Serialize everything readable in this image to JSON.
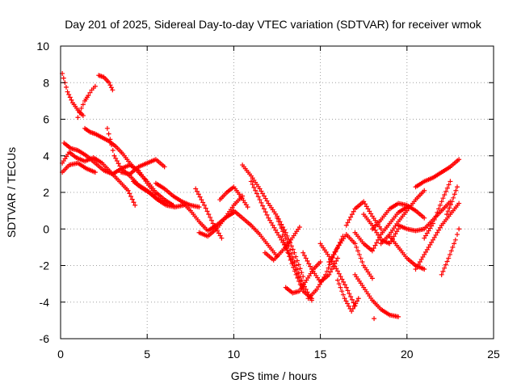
{
  "chart_data": {
    "type": "scatter",
    "title": "Day 201 of 2025, Sidereal Day-to-day VTEC variation (SDTVAR) for receiver wmok",
    "xlabel": "GPS time / hours",
    "ylabel": "SDTVAR / TECUs",
    "xlim": [
      0,
      25
    ],
    "ylim": [
      -6,
      10
    ],
    "xticks": [
      0,
      5,
      10,
      15,
      20,
      25
    ],
    "yticks": [
      -6,
      -4,
      -2,
      0,
      2,
      4,
      6,
      8,
      10
    ],
    "grid": true,
    "marker": "+",
    "color": "#ff0000",
    "series": [
      {
        "name": "s1",
        "x": [
          0.1,
          0.4,
          0.7,
          1.0,
          1.3
        ],
        "y": [
          8.5,
          7.5,
          6.9,
          6.5,
          6.2
        ]
      },
      {
        "name": "s2",
        "x": [
          0.1,
          0.5,
          0.9,
          1.4,
          1.9,
          2.4,
          2.9,
          3.4,
          3.9,
          4.3
        ],
        "y": [
          3.6,
          4.2,
          3.9,
          3.7,
          3.9,
          3.6,
          3.1,
          2.6,
          2.1,
          1.3
        ]
      },
      {
        "name": "s3",
        "x": [
          0.2,
          0.6,
          1.0,
          1.5,
          2.0,
          2.5,
          3.0,
          3.5,
          4.0,
          4.5,
          5.0,
          5.5
        ],
        "y": [
          4.7,
          4.4,
          4.3,
          4.0,
          3.6,
          3.2,
          3.0,
          3.3,
          3.5,
          3.2,
          2.5,
          1.9
        ]
      },
      {
        "name": "s4",
        "x": [
          0.1,
          0.5,
          1.0,
          1.5,
          2.0
        ],
        "y": [
          3.1,
          3.5,
          3.6,
          3.3,
          3.1
        ]
      },
      {
        "name": "s5",
        "x": [
          1.4,
          1.7,
          2.0,
          2.4,
          2.8,
          3.2,
          3.6,
          4.0,
          4.5,
          5.0,
          5.5,
          6.0,
          6.5
        ],
        "y": [
          5.5,
          5.3,
          5.2,
          5.0,
          4.8,
          4.5,
          4.1,
          3.6,
          3.1,
          2.6,
          2.0,
          1.6,
          1.3
        ]
      },
      {
        "name": "s6",
        "x": [
          1.0,
          1.2,
          1.4,
          1.6,
          1.8,
          2.0
        ],
        "y": [
          6.1,
          6.6,
          7.0,
          7.3,
          7.6,
          7.8
        ]
      },
      {
        "name": "s7",
        "x": [
          2.2,
          2.5,
          2.8,
          3.0
        ],
        "y": [
          8.4,
          8.3,
          8.0,
          7.6
        ]
      },
      {
        "name": "s8",
        "x": [
          2.7,
          3.1,
          3.5,
          4.0,
          4.5,
          5.0,
          5.5,
          6.0
        ],
        "y": [
          5.5,
          4.0,
          3.3,
          2.9,
          2.4,
          2.1,
          1.7,
          1.4
        ]
      },
      {
        "name": "s9",
        "x": [
          3.5,
          4.0,
          4.5,
          5.0,
          5.5,
          6.0
        ],
        "y": [
          3.1,
          3.0,
          3.4,
          3.6,
          3.8,
          3.4
        ]
      },
      {
        "name": "s10",
        "x": [
          4.2,
          4.6,
          5.1,
          5.6,
          6.1,
          6.6,
          7.1
        ],
        "y": [
          2.6,
          2.3,
          2.0,
          1.6,
          1.3,
          1.2,
          1.3
        ]
      },
      {
        "name": "s11",
        "x": [
          5.5,
          6.0,
          6.5,
          7.0,
          7.5,
          8.0
        ],
        "y": [
          2.5,
          2.2,
          1.8,
          1.5,
          1.3,
          1.2
        ]
      },
      {
        "name": "s12",
        "x": [
          7.0,
          7.5,
          8.0,
          8.5,
          9.0,
          9.5,
          10.0
        ],
        "y": [
          1.5,
          1.0,
          0.4,
          -0.1,
          0.2,
          0.6,
          0.9
        ]
      },
      {
        "name": "s13",
        "x": [
          7.8,
          8.3,
          8.8,
          9.3
        ],
        "y": [
          2.2,
          1.3,
          0.3,
          -0.5
        ]
      },
      {
        "name": "s14",
        "x": [
          8.0,
          8.5,
          9.0,
          9.5,
          10.0,
          10.5
        ],
        "y": [
          -0.2,
          -0.4,
          0.0,
          0.6,
          1.3,
          1.8
        ]
      },
      {
        "name": "s15",
        "x": [
          9.2,
          9.6,
          10.0,
          10.4,
          10.8
        ],
        "y": [
          1.6,
          2.0,
          2.3,
          1.8,
          1.2
        ]
      },
      {
        "name": "s16",
        "x": [
          10.0,
          10.5,
          11.0,
          11.5,
          12.0,
          12.5
        ],
        "y": [
          1.0,
          0.6,
          0.2,
          -0.3,
          -0.9,
          -1.5
        ]
      },
      {
        "name": "s17",
        "x": [
          10.5,
          11.0,
          11.5,
          12.0,
          12.5,
          13.0,
          13.5,
          14.0
        ],
        "y": [
          3.5,
          2.9,
          2.2,
          1.4,
          0.7,
          -0.2,
          -1.3,
          -2.6
        ]
      },
      {
        "name": "s18",
        "x": [
          11.0,
          11.5,
          12.0,
          12.5,
          13.0,
          13.5,
          14.0
        ],
        "y": [
          2.6,
          1.6,
          0.6,
          -0.2,
          -1.0,
          -2.0,
          -3.3
        ]
      },
      {
        "name": "s19",
        "x": [
          11.8,
          12.3,
          12.8,
          13.3,
          13.8
        ],
        "y": [
          -1.3,
          -1.7,
          -1.2,
          -0.6,
          0.1
        ]
      },
      {
        "name": "s20",
        "x": [
          12.5,
          13.0,
          13.5,
          14.0,
          14.5
        ],
        "y": [
          0.6,
          -0.5,
          -1.8,
          -3.0,
          -3.9
        ]
      },
      {
        "name": "s21",
        "x": [
          12.8,
          13.2,
          13.6,
          14.0,
          14.5
        ],
        "y": [
          -0.4,
          -1.5,
          -2.5,
          -3.4,
          -3.8
        ]
      },
      {
        "name": "s22",
        "x": [
          13.0,
          13.4,
          13.8,
          14.2,
          14.6,
          15.0
        ],
        "y": [
          -3.2,
          -3.5,
          -3.4,
          -2.8,
          -2.2,
          -1.8
        ]
      },
      {
        "name": "s23",
        "x": [
          14.0,
          14.5,
          15.0,
          15.5,
          16.0
        ],
        "y": [
          -1.3,
          -2.2,
          -2.9,
          -2.5,
          -1.6
        ]
      },
      {
        "name": "s24",
        "x": [
          14.3,
          14.8,
          15.3,
          15.8,
          16.3
        ],
        "y": [
          -3.8,
          -3.3,
          -2.5,
          -1.4,
          -0.4
        ]
      },
      {
        "name": "s25",
        "x": [
          15.0,
          15.5,
          16.0,
          16.5,
          17.0
        ],
        "y": [
          -0.8,
          -1.5,
          -2.3,
          -3.2,
          -4.2
        ]
      },
      {
        "name": "s26",
        "x": [
          15.5,
          16.0,
          16.5,
          17.0,
          17.5,
          18.0
        ],
        "y": [
          -1.8,
          -1.0,
          -0.3,
          -0.8,
          -2.0,
          -2.7
        ]
      },
      {
        "name": "s27",
        "x": [
          16.0,
          16.4,
          16.8,
          17.2
        ],
        "y": [
          -2.8,
          -3.8,
          -4.5,
          -3.8
        ]
      },
      {
        "name": "s28",
        "x": [
          16.5,
          17.0,
          17.5,
          18.0,
          18.5
        ],
        "y": [
          0.2,
          1.1,
          1.5,
          0.7,
          0.0
        ]
      },
      {
        "name": "s29",
        "x": [
          17.0,
          17.5,
          18.0,
          18.5,
          19.0,
          19.5
        ],
        "y": [
          -2.5,
          -3.2,
          -3.9,
          -4.4,
          -4.7,
          -4.8
        ]
      },
      {
        "name": "s30",
        "x": [
          17.0,
          17.5,
          18.0,
          18.5,
          19.0,
          19.5,
          20.0
        ],
        "y": [
          -0.2,
          -0.8,
          -1.2,
          -0.3,
          0.3,
          0.9,
          1.2
        ]
      },
      {
        "name": "s31",
        "x": [
          17.5,
          18.0,
          18.5,
          19.0,
          19.5
        ],
        "y": [
          0.8,
          0.2,
          -0.6,
          -0.8,
          0.0
        ]
      },
      {
        "name": "s32",
        "x": [
          18.0,
          18.5,
          19.0,
          19.5,
          20.0,
          20.5,
          21.0
        ],
        "y": [
          0.0,
          0.5,
          1.1,
          1.4,
          1.3,
          1.0,
          0.6
        ]
      },
      {
        "name": "s33",
        "x": [
          18.5,
          19.0,
          19.5,
          20.0,
          20.5,
          21.0
        ],
        "y": [
          -0.8,
          -0.3,
          0.4,
          1.0,
          1.6,
          2.1
        ]
      },
      {
        "name": "s34",
        "x": [
          19.0,
          19.5,
          20.0,
          20.5,
          21.0
        ],
        "y": [
          -0.4,
          -1.0,
          -1.6,
          -2.0,
          -2.2
        ]
      },
      {
        "name": "s35",
        "x": [
          19.5,
          20.0,
          20.5,
          21.0,
          21.5,
          22.0,
          22.5
        ],
        "y": [
          0.2,
          0.0,
          -0.1,
          0.0,
          0.5,
          1.0,
          1.5
        ]
      },
      {
        "name": "s36",
        "x": [
          20.5,
          21.0,
          21.5,
          22.0,
          22.5,
          23.0
        ],
        "y": [
          2.3,
          2.6,
          2.8,
          3.1,
          3.4,
          3.8
        ]
      },
      {
        "name": "s37",
        "x": [
          20.5,
          21.0,
          21.5,
          22.0,
          22.5,
          23.0
        ],
        "y": [
          -2.2,
          -1.4,
          -0.6,
          0.2,
          0.8,
          1.4
        ]
      },
      {
        "name": "s38",
        "x": [
          21.0,
          21.5,
          22.0,
          22.5
        ],
        "y": [
          -0.5,
          0.3,
          1.5,
          2.6
        ]
      },
      {
        "name": "s39",
        "x": [
          22.0,
          22.4,
          22.8,
          23.0
        ],
        "y": [
          -2.5,
          -1.6,
          -0.6,
          0.0
        ]
      },
      {
        "name": "s40",
        "x": [
          22.3,
          22.6,
          22.9
        ],
        "y": [
          0.8,
          1.5,
          2.3
        ]
      },
      {
        "name": "s41",
        "x": [
          18.1
        ],
        "y": [
          -4.9
        ]
      }
    ]
  }
}
